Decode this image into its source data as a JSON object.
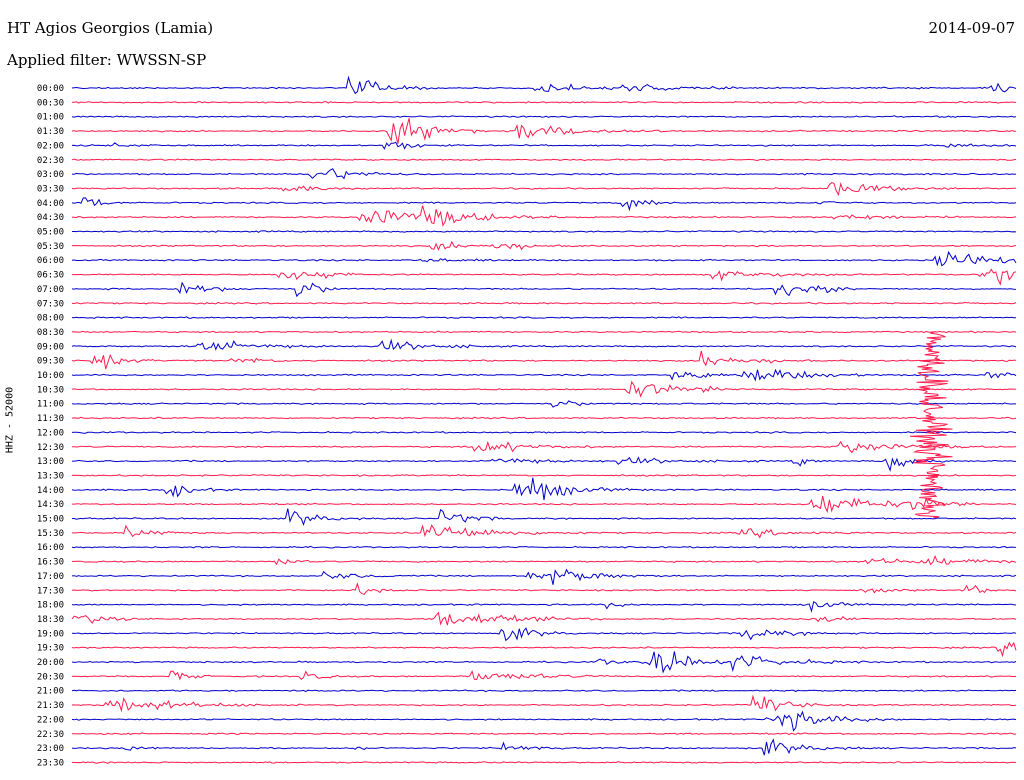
{
  "header": {
    "station": "HT Agios Georgios (Lamia)",
    "filter": "Applied filter: WWSSN-SP",
    "date": "2014-09-07"
  },
  "chart_data": {
    "type": "line",
    "subtype": "helicorder",
    "ylabel": "HHZ - 52000",
    "rows": [
      "00:00",
      "00:30",
      "01:00",
      "01:30",
      "02:00",
      "02:30",
      "03:00",
      "03:30",
      "04:00",
      "04:30",
      "05:00",
      "05:30",
      "06:00",
      "06:30",
      "07:00",
      "07:30",
      "08:00",
      "08:30",
      "09:00",
      "09:30",
      "10:00",
      "10:30",
      "11:00",
      "11:30",
      "12:00",
      "12:30",
      "13:00",
      "13:30",
      "14:00",
      "14:30",
      "15:00",
      "15:30",
      "16:00",
      "16:30",
      "17:00",
      "17:30",
      "18:00",
      "18:30",
      "19:00",
      "19:30",
      "20:00",
      "20:30",
      "21:00",
      "21:30",
      "22:00",
      "22:30",
      "23:00",
      "23:30"
    ],
    "row_colors": [
      "#0000cc",
      "#ff1a4d"
    ],
    "large_event": {
      "start_row": "08:30",
      "end_row": "15:00",
      "x_fraction": 0.91
    }
  }
}
